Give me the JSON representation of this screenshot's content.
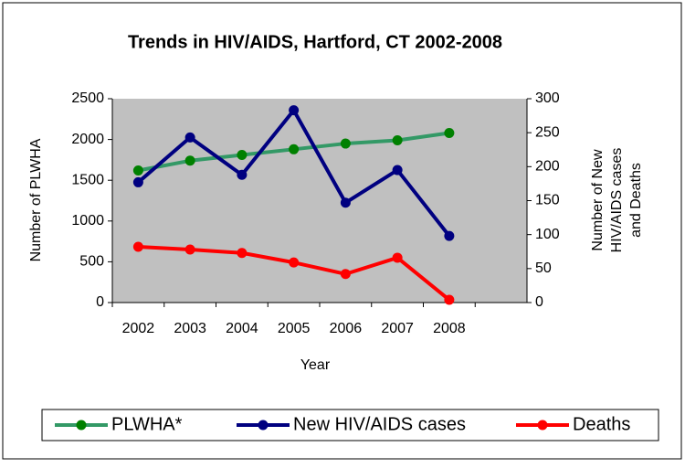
{
  "chart_data": {
    "type": "line",
    "title": "Trends in HIV/AIDS, Hartford, CT 2002-2008",
    "xlabel": "Year",
    "ylabel": "Number of PLWHA",
    "y2label": [
      "Number of New",
      "HIV/AIDS cases",
      "and Deaths"
    ],
    "categories": [
      "2002",
      "2003",
      "2004",
      "2005",
      "2006",
      "2007",
      "2008",
      null
    ],
    "series": [
      {
        "name": "PLWHA*",
        "color": "#339966",
        "marker": "#008000",
        "axis": "y",
        "values": [
          1620,
          1740,
          1810,
          1880,
          1950,
          1990,
          2080,
          null
        ]
      },
      {
        "name": "New HIV/AIDS cases",
        "color": "#000080",
        "marker": "#000080",
        "axis": "y2",
        "values": [
          177,
          243,
          188,
          283,
          147,
          195,
          98,
          null
        ]
      },
      {
        "name": "Deaths",
        "color": "#ff0000",
        "marker": "#ff0000",
        "axis": "y2",
        "values": [
          82,
          78,
          73,
          59,
          42,
          66,
          4,
          null
        ]
      }
    ],
    "ylim": [
      0,
      2500
    ],
    "yticks": [
      0,
      500,
      1000,
      1500,
      2000,
      2500
    ],
    "y2lim": [
      0,
      300
    ],
    "y2ticks": [
      0,
      50,
      100,
      150,
      200,
      250,
      300
    ],
    "legend": "bottom",
    "plot_background": "#c0c0c0"
  }
}
